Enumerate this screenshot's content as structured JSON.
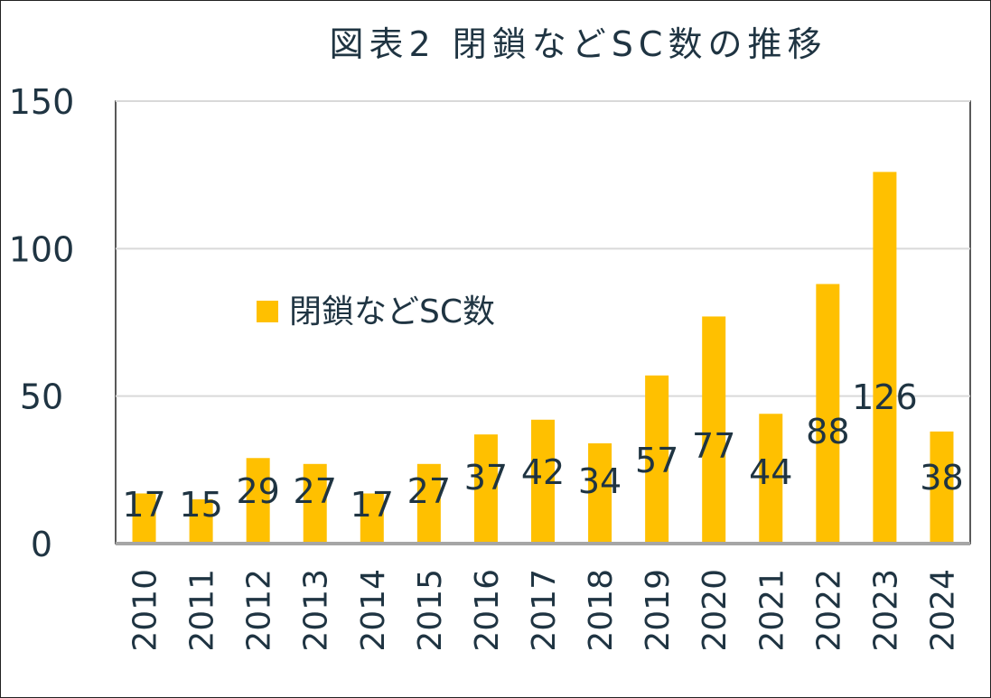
{
  "chart_data": {
    "type": "bar",
    "title": "図表2 閉鎖などSC数の推移",
    "categories": [
      "2010",
      "2011",
      "2012",
      "2013",
      "2014",
      "2015",
      "2016",
      "2017",
      "2018",
      "2019",
      "2020",
      "2021",
      "2022",
      "2023",
      "2024"
    ],
    "series": [
      {
        "name": "閉鎖などSC数",
        "values": [
          17,
          15,
          29,
          27,
          17,
          27,
          37,
          42,
          34,
          57,
          77,
          44,
          88,
          126,
          38
        ],
        "color": "#FFC000"
      }
    ],
    "ylim": [
      0,
      150
    ],
    "yticks": [
      0,
      50,
      100,
      150
    ],
    "grid": true,
    "legend_position": "top-left",
    "data_labels": true
  }
}
